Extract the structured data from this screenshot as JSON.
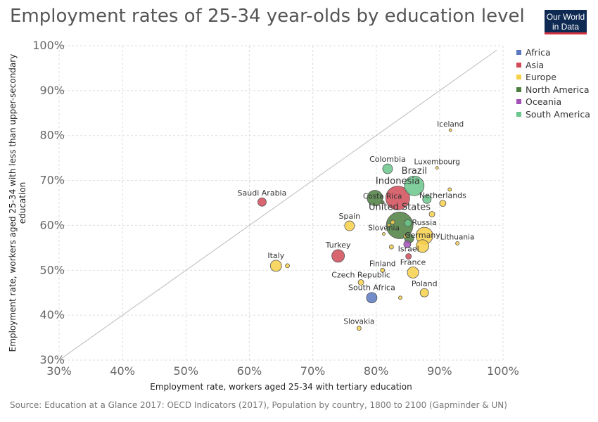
{
  "header": {
    "title": "Employment rates of 25-34 year-olds by education level",
    "logo_line1": "Our World",
    "logo_line2": "in Data"
  },
  "footer": {
    "source": "Source: Education at a Glance 2017: OECD Indicators (2017), Population by country, 1800 to 2100 (Gapminder & UN)"
  },
  "colors": {
    "Africa": "#5b78c1",
    "Asia": "#d14b57",
    "Europe": "#f7d04a",
    "North America": "#4c7f3f",
    "Oceania": "#a24fb8",
    "South America": "#6bc68c",
    "logo_bg": "#0f2a52",
    "logo_bar": "#d0323f"
  },
  "chart_data": {
    "type": "scatter",
    "title": "Employment rates of 25-34 year-olds by education level",
    "xlabel": "Employment rate, workers aged 25-34 with tertiary education",
    "ylabel": "Employment rate, workers aged 25-34 with less than upper-secondary education",
    "xlim": [
      30,
      100
    ],
    "ylim": [
      30,
      100
    ],
    "x_ticks": [
      "30%",
      "40%",
      "50%",
      "60%",
      "70%",
      "80%",
      "90%",
      "100%"
    ],
    "y_ticks": [
      "30%",
      "40%",
      "50%",
      "60%",
      "70%",
      "80%",
      "90%",
      "100%"
    ],
    "grid": true,
    "diagonal_reference_line": true,
    "size_encodes": "population",
    "legend_position": "right",
    "legend": [
      "Africa",
      "Asia",
      "Europe",
      "North America",
      "Oceania",
      "South America"
    ],
    "points": [
      {
        "label": "Iceland",
        "x": 91.7,
        "y": 81.2,
        "region": "Europe",
        "r": 2
      },
      {
        "label": "Colombia",
        "x": 81.8,
        "y": 72.6,
        "region": "South America",
        "r": 7
      },
      {
        "label": "Luxembourg",
        "x": 89.6,
        "y": 72.8,
        "region": "Europe",
        "r": 2
      },
      {
        "label": "Brazil",
        "x": 86.0,
        "y": 68.8,
        "region": "South America",
        "r": 14
      },
      {
        "label": "Indonesia",
        "x": 83.4,
        "y": 66.1,
        "region": "Asia",
        "r": 17
      },
      {
        "label": "Costa Rica",
        "x": 81.0,
        "y": 65.1,
        "region": "North America",
        "r": 2.5
      },
      {
        "label": "Netherlands",
        "x": 90.5,
        "y": 64.9,
        "region": "Europe",
        "r": 4.5
      },
      {
        "label": "Saudi Arabia",
        "x": 62.0,
        "y": 65.2,
        "region": "Asia",
        "r": 6
      },
      {
        "label": "United States",
        "x": 83.7,
        "y": 60.0,
        "region": "North America",
        "r": 19
      },
      {
        "label": "Spain",
        "x": 75.8,
        "y": 59.9,
        "region": "Europe",
        "r": 7
      },
      {
        "label": "Russia",
        "x": 87.6,
        "y": 57.7,
        "region": "Europe",
        "r": 12
      },
      {
        "label": "Slovenia",
        "x": 81.2,
        "y": 58.1,
        "region": "Europe",
        "r": 2
      },
      {
        "label": "Germany",
        "x": 87.3,
        "y": 55.4,
        "region": "Europe",
        "r": 9
      },
      {
        "label": "Lithuania",
        "x": 92.8,
        "y": 56.0,
        "region": "Europe",
        "r": 2.5
      },
      {
        "label": "Israel",
        "x": 85.1,
        "y": 53.1,
        "region": "Asia",
        "r": 4
      },
      {
        "label": "Turkey",
        "x": 74.0,
        "y": 53.2,
        "region": "Asia",
        "r": 9
      },
      {
        "label": "Italy",
        "x": 64.2,
        "y": 51.0,
        "region": "Europe",
        "r": 8
      },
      {
        "label": "Finland",
        "x": 81.0,
        "y": 50.0,
        "region": "Europe",
        "r": 3
      },
      {
        "label": "France",
        "x": 85.8,
        "y": 49.5,
        "region": "Europe",
        "r": 8
      },
      {
        "label": "Czech Republic",
        "x": 77.6,
        "y": 47.3,
        "region": "Europe",
        "r": 4
      },
      {
        "label": "Poland",
        "x": 87.6,
        "y": 45.0,
        "region": "Europe",
        "r": 6
      },
      {
        "label": "South Africa",
        "x": 79.3,
        "y": 43.9,
        "region": "Africa",
        "r": 7.5
      },
      {
        "label": "Slovakia",
        "x": 77.3,
        "y": 37.1,
        "region": "Europe",
        "r": 3
      },
      {
        "label": "",
        "x": 66.0,
        "y": 51.0,
        "region": "Europe",
        "r": 3
      },
      {
        "label": "",
        "x": 82.6,
        "y": 60.7,
        "region": "Europe",
        "r": 3
      },
      {
        "label": "",
        "x": 82.4,
        "y": 55.2,
        "region": "Europe",
        "r": 3
      },
      {
        "label": "",
        "x": 83.8,
        "y": 43.9,
        "region": "Europe",
        "r": 2.5
      },
      {
        "label": "",
        "x": 88.8,
        "y": 62.5,
        "region": "Europe",
        "r": 4
      },
      {
        "label": "",
        "x": 91.6,
        "y": 68.0,
        "region": "Europe",
        "r": 2.5
      },
      {
        "label": "",
        "x": 85.0,
        "y": 60.5,
        "region": "South America",
        "r": 5
      },
      {
        "label": "",
        "x": 88.0,
        "y": 65.8,
        "region": "South America",
        "r": 6
      },
      {
        "label": "",
        "x": 84.9,
        "y": 55.8,
        "region": "Oceania",
        "r": 5
      },
      {
        "label": "",
        "x": 85.2,
        "y": 57.1,
        "region": "North America",
        "r": 6.5
      },
      {
        "label": "",
        "x": 79.8,
        "y": 66.1,
        "region": "North America",
        "r": 11
      },
      {
        "label": "",
        "x": 84.6,
        "y": 57.6,
        "region": "Europe",
        "r": 2.5
      },
      {
        "label": "",
        "x": 82.0,
        "y": 60.1,
        "region": "Europe",
        "r": 2
      }
    ]
  }
}
